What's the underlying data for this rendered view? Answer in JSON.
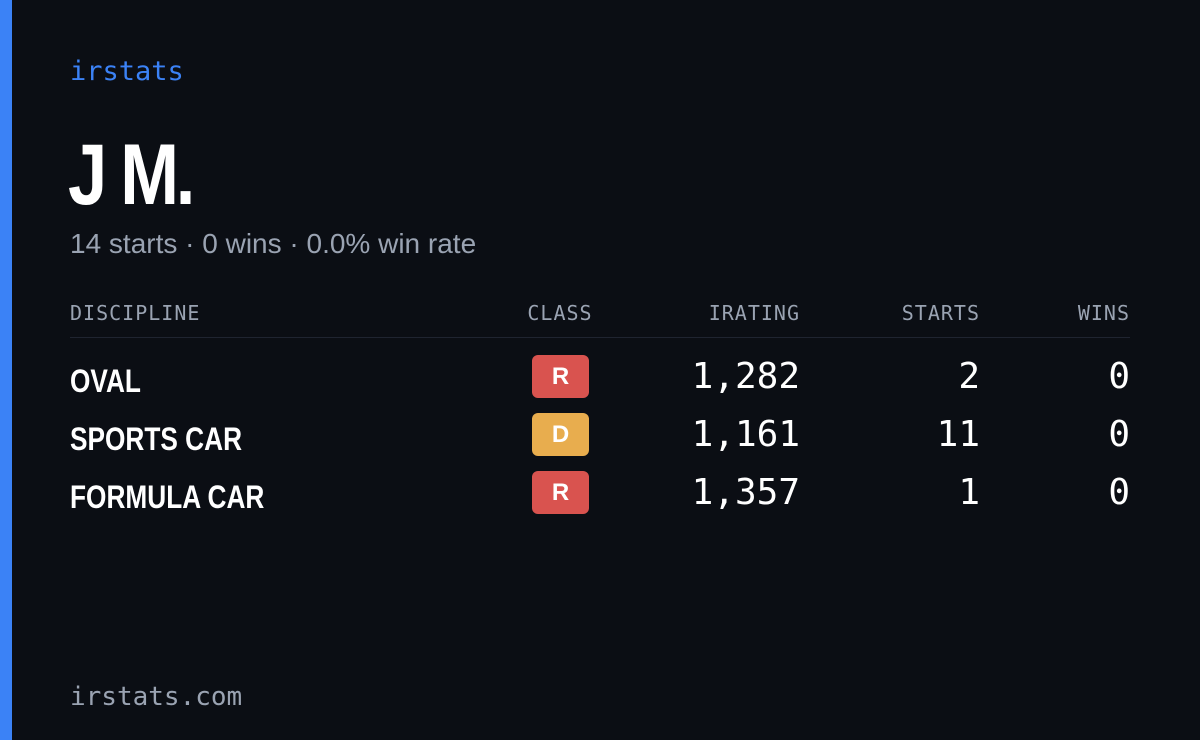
{
  "brand": "irstats",
  "profile": {
    "name": "J M.",
    "summary": "14 starts · 0 wins · 0.0% win rate"
  },
  "table": {
    "headers": [
      "DISCIPLINE",
      "CLASS",
      "IRATING",
      "STARTS",
      "WINS"
    ],
    "rows": [
      {
        "discipline": "OVAL",
        "class": "R",
        "class_color": "#d9534f",
        "irating": "1,282",
        "starts": 2,
        "wins": 0
      },
      {
        "discipline": "SPORTS CAR",
        "class": "D",
        "class_color": "#e8ad4e",
        "irating": "1,161",
        "starts": 11,
        "wins": 0
      },
      {
        "discipline": "FORMULA CAR",
        "class": "R",
        "class_color": "#d9534f",
        "irating": "1,357",
        "starts": 1,
        "wins": 0
      }
    ]
  },
  "footer": "irstats.com"
}
